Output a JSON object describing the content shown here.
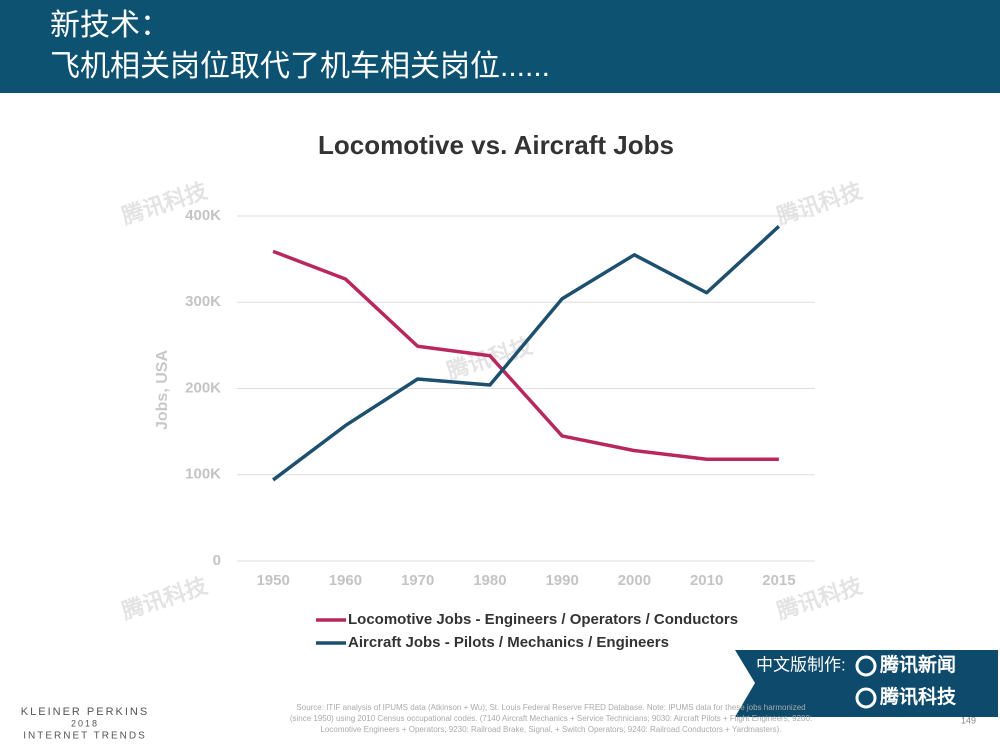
{
  "header": {
    "title_line1": "新技术：",
    "title_line2": "飞机相关岗位取代了机车相关岗位......"
  },
  "chart_data": {
    "type": "line",
    "title": "Locomotive vs. Aircraft Jobs",
    "y_label": "Jobs, USA",
    "categories": [
      "1950",
      "1960",
      "1970",
      "1980",
      "1990",
      "2000",
      "2010",
      "2015"
    ],
    "series": [
      {
        "name": "Locomotive Jobs - Engineers / Operators / Conductors",
        "color": "#b8285c",
        "values": [
          359000,
          327000,
          249000,
          238000,
          145000,
          128000,
          118000,
          118000
        ]
      },
      {
        "name": "Aircraft Jobs - Pilots / Mechanics / Engineers",
        "color": "#1d4f6e",
        "values": [
          94000,
          157000,
          211000,
          204000,
          304000,
          355000,
          311000,
          388000
        ]
      }
    ],
    "ylim": [
      0,
      400000
    ],
    "yticks": [
      0,
      {
        "value": 100000,
        "label": "100K"
      },
      {
        "value": 200000,
        "label": "200K"
      },
      {
        "value": 300000,
        "label": "300K"
      },
      {
        "value": 400000,
        "label": "400K"
      }
    ],
    "grid": true
  },
  "watermark": "腾讯科技",
  "source": [
    "Source: ITIF analysis of IPUMS data (Atkinson + Wu); St. Louis Federal Reserve FRED Database.  Note: IPUMS data for these jobs harmonized",
    "(since 1950) using 2010 Census occupational codes. (7140 Aircraft Mechanics + Service Technicians; 9030: Aircraft Pilots + Flight Engineers; 9200:",
    "Locomotive Engineers + Operators; 9230: Railroad Brake, Signal, + Switch Operators; 9240: Railroad Conductors + Yardmasters)."
  ],
  "badge": {
    "prefix": "中文版制作:",
    "line1": "腾讯新闻",
    "line2": "腾讯科技"
  },
  "brand": [
    "KLEINER PERKINS",
    "2018",
    "INTERNET TRENDS"
  ],
  "page_number": "149"
}
